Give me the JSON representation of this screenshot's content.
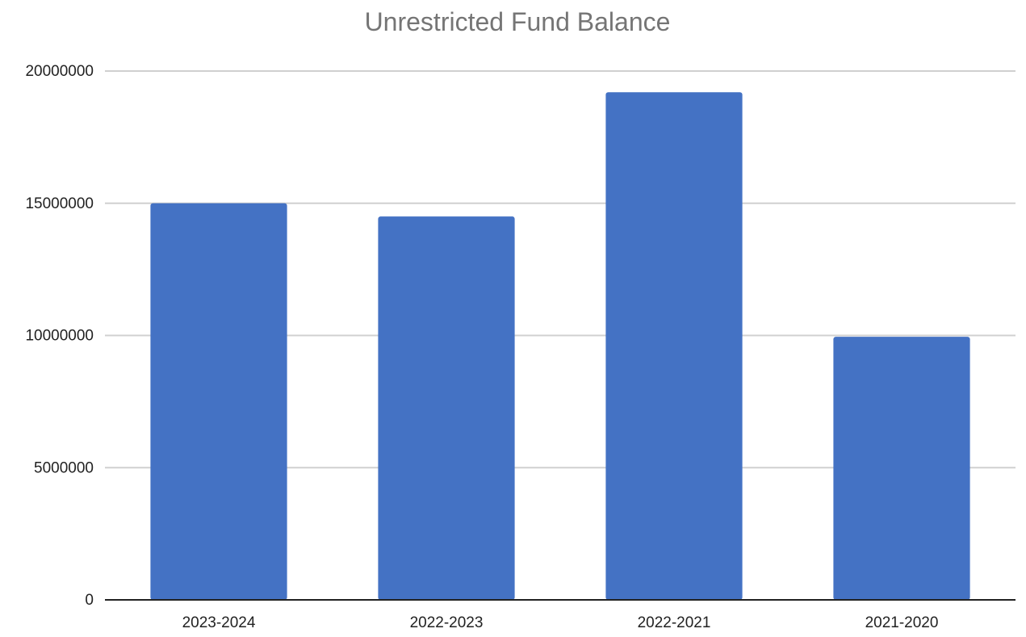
{
  "chart_data": {
    "type": "bar",
    "title": "Unrestricted Fund Balance",
    "xlabel": "",
    "ylabel": "",
    "categories": [
      "2023-2024",
      "2022-2023",
      "2022-2021",
      "2021-2020"
    ],
    "values": [
      15000000,
      14500000,
      19200000,
      9950000
    ],
    "ylim": [
      0,
      20000000
    ],
    "yticks": [
      0,
      5000000,
      10000000,
      15000000,
      20000000
    ],
    "ytick_labels": [
      "0",
      "5000000",
      "10000000",
      "15000000",
      "20000000"
    ],
    "grid": true,
    "legend": "none",
    "colors": {
      "bar": "#4472C4",
      "grid": "#D0D0D0",
      "axis": "#222222",
      "title": "#757575",
      "tick": "#222222"
    }
  }
}
